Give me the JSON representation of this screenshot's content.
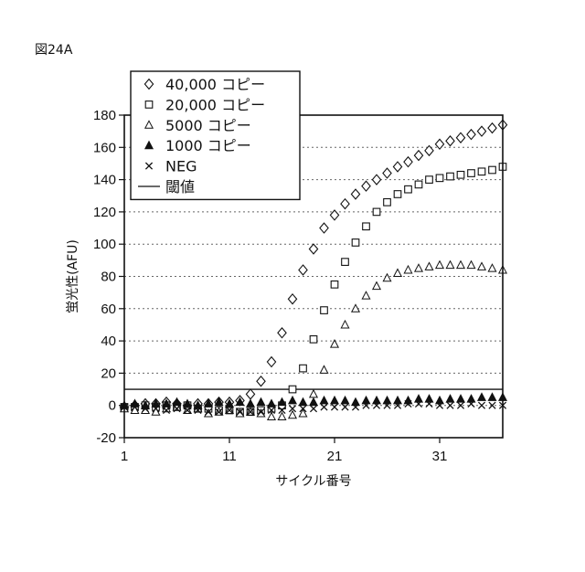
{
  "figure_label": "図24A",
  "chart_data": {
    "type": "scatter",
    "xlabel": "サイクル番号",
    "ylabel": "蛍光性(AFU)",
    "xlim": [
      1,
      37
    ],
    "ylim": [
      -20,
      180
    ],
    "xticks": [
      1,
      11,
      21,
      31
    ],
    "yticks": [
      -20,
      0,
      20,
      40,
      60,
      80,
      100,
      120,
      140,
      160,
      180
    ],
    "grid": "horizontal dotted",
    "legend_position": "top-left",
    "threshold": 10,
    "series": [
      {
        "name": "40,000 コピー",
        "marker": "diamond",
        "x": [
          1,
          2,
          3,
          4,
          5,
          6,
          7,
          8,
          9,
          10,
          11,
          12,
          13,
          14,
          15,
          16,
          17,
          18,
          19,
          20,
          21,
          22,
          23,
          24,
          25,
          26,
          27,
          28,
          29,
          30,
          31,
          32,
          33,
          34,
          35,
          36,
          37
        ],
        "y": [
          -1,
          0,
          1,
          1,
          2,
          1,
          0,
          1,
          1,
          2,
          2,
          3,
          7,
          15,
          27,
          45,
          66,
          84,
          97,
          110,
          118,
          125,
          131,
          136,
          140,
          144,
          148,
          151,
          155,
          158,
          162,
          164,
          166,
          168,
          170,
          172,
          174
        ]
      },
      {
        "name": "20,000 コピー",
        "marker": "square",
        "x": [
          1,
          2,
          3,
          4,
          5,
          6,
          7,
          8,
          9,
          10,
          11,
          12,
          13,
          14,
          15,
          16,
          17,
          18,
          19,
          20,
          21,
          22,
          23,
          24,
          25,
          26,
          27,
          28,
          29,
          30,
          31,
          32,
          33,
          34,
          35,
          36,
          37
        ],
        "y": [
          -1,
          -1,
          0,
          -1,
          0,
          -1,
          0,
          -2,
          -2,
          -3,
          -3,
          -4,
          -4,
          -3,
          -2,
          0,
          10,
          23,
          41,
          59,
          75,
          89,
          101,
          111,
          120,
          126,
          131,
          134,
          137,
          140,
          141,
          142,
          143,
          144,
          145,
          146,
          148
        ]
      },
      {
        "name": "5000 コピー",
        "marker": "triangle-open",
        "x": [
          1,
          2,
          3,
          4,
          5,
          6,
          7,
          8,
          9,
          10,
          11,
          12,
          13,
          14,
          15,
          16,
          17,
          18,
          19,
          20,
          21,
          22,
          23,
          24,
          25,
          26,
          27,
          28,
          29,
          30,
          31,
          32,
          33,
          34,
          35,
          36,
          37
        ],
        "y": [
          -2,
          -3,
          -3,
          -4,
          -2,
          -1,
          -3,
          -2,
          -5,
          -4,
          -3,
          -5,
          -4,
          -5,
          -7,
          -7,
          -6,
          -5,
          7,
          22,
          38,
          50,
          60,
          68,
          74,
          79,
          82,
          84,
          85,
          86,
          87,
          87,
          87,
          87,
          86,
          85,
          84
        ]
      },
      {
        "name": "1000 コピー",
        "marker": "triangle-filled",
        "x": [
          1,
          2,
          3,
          4,
          5,
          6,
          7,
          8,
          9,
          10,
          11,
          12,
          13,
          14,
          15,
          16,
          17,
          18,
          19,
          20,
          21,
          22,
          23,
          24,
          25,
          26,
          27,
          28,
          29,
          30,
          31,
          32,
          33,
          34,
          35,
          36,
          37
        ],
        "y": [
          0,
          1,
          0,
          1,
          1,
          2,
          1,
          0,
          1,
          2,
          1,
          2,
          1,
          2,
          1,
          2,
          3,
          2,
          2,
          3,
          3,
          3,
          2,
          3,
          3,
          3,
          3,
          3,
          4,
          4,
          3,
          4,
          4,
          4,
          5,
          5,
          5
        ]
      },
      {
        "name": "NEG",
        "marker": "x",
        "x": [
          1,
          2,
          3,
          4,
          5,
          6,
          7,
          8,
          9,
          10,
          11,
          12,
          13,
          14,
          15,
          16,
          17,
          18,
          19,
          20,
          21,
          22,
          23,
          24,
          25,
          26,
          27,
          28,
          29,
          30,
          31,
          32,
          33,
          34,
          35,
          36,
          37
        ],
        "y": [
          -1,
          -1,
          -2,
          -2,
          -3,
          -2,
          -3,
          -3,
          -4,
          -4,
          -3,
          -4,
          -4,
          -4,
          -3,
          -3,
          -2,
          -2,
          -2,
          -1,
          -1,
          -1,
          -1,
          0,
          0,
          0,
          0,
          1,
          1,
          1,
          0,
          0,
          0,
          1,
          0,
          0,
          0
        ]
      },
      {
        "name": "閾値",
        "marker": "line",
        "x": [
          1,
          37
        ],
        "y": [
          10,
          10
        ]
      }
    ]
  }
}
